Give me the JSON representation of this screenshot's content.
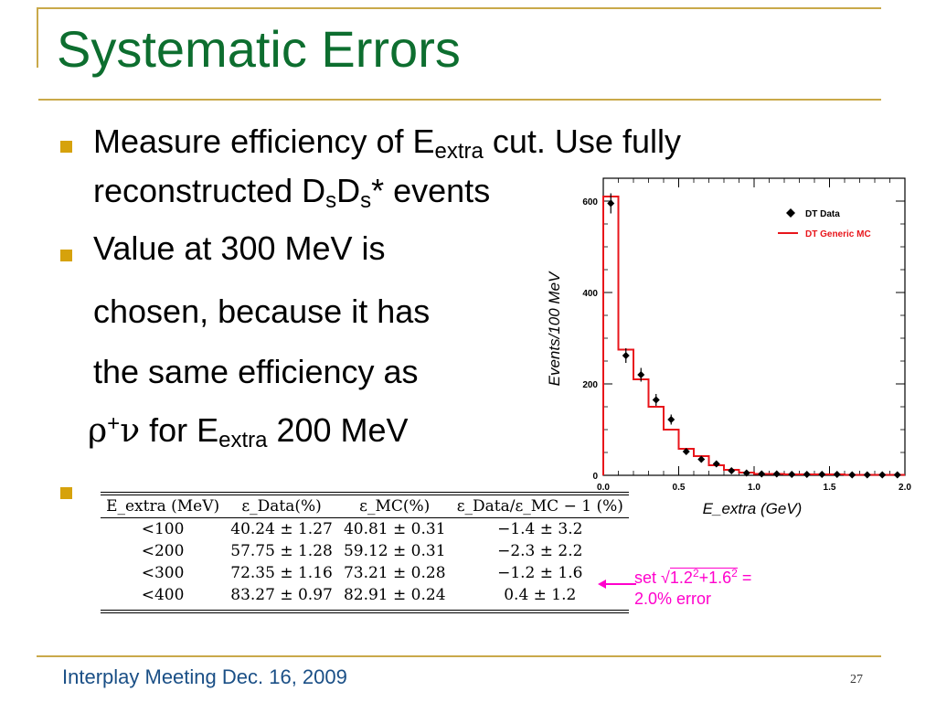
{
  "slide": {
    "title": "Systematic Errors",
    "footer": "Interplay Meeting Dec. 16, 2009",
    "page_number": "27"
  },
  "bullets": {
    "b1_line1_pre": "Measure efficiency of E",
    "b1_line1_sub": "extra",
    "b1_line1_post": " cut. Use fully",
    "b1_line2_pre": "reconstructed D",
    "b1_line2_sub1": "s",
    "b1_line2_mid": "D",
    "b1_line2_sub2": "s",
    "b1_line2_post": "* events",
    "b2_line1": "Value at 300 MeV is",
    "b2_line2": "chosen, because it has",
    "b2_line3": "the same efficiency  as",
    "b2_line4_rho": "ρ",
    "b2_line4_sup": "+",
    "b2_line4_nu": "ν",
    "b2_line4_pre": " for E",
    "b2_line4_sub": "extra",
    "b2_line4_post": " 200 MeV"
  },
  "table": {
    "headers": [
      "E_extra (MeV)",
      "ε_Data(%)",
      "ε_MC(%)",
      "ε_Data/ε_MC − 1 (%)"
    ],
    "rows": [
      [
        "<100",
        "40.24 ± 1.27",
        "40.81 ± 0.31",
        "−1.4 ± 3.2"
      ],
      [
        "<200",
        "57.75 ± 1.28",
        "59.12 ± 0.31",
        "−2.3 ± 2.2"
      ],
      [
        "<300",
        "72.35 ± 1.16",
        "73.21 ± 0.28",
        "−1.2 ± 1.6"
      ],
      [
        "<400",
        "83.27 ± 0.97",
        "82.91 ± 0.24",
        "0.4 ± 1.2"
      ]
    ]
  },
  "annotation": {
    "pre": "set √",
    "radicand_a": "1.2",
    "sup_a": "2",
    "plus": "+1.6",
    "sup_b": "2",
    "post": " =",
    "line2": "2.0% error",
    "color": "#ff00cc"
  },
  "chart_data": {
    "type": "scatter",
    "xlabel": "E_extra (GeV)",
    "ylabel": "Events/100 MeV",
    "xlim": [
      0.0,
      2.0
    ],
    "ylim": [
      0,
      650
    ],
    "x_ticks": [
      "0.0",
      "0.5",
      "1.0",
      "1.5",
      "2.0"
    ],
    "y_ticks": [
      "0",
      "200",
      "400",
      "600"
    ],
    "legend_placement": "top-right",
    "series": [
      {
        "name": "DT Data",
        "kind": "points",
        "color": "#000000",
        "x": [
          0.05,
          0.15,
          0.25,
          0.35,
          0.45,
          0.55,
          0.65,
          0.75,
          0.85,
          0.95,
          1.05,
          1.15,
          1.25,
          1.35,
          1.45,
          1.55,
          1.65,
          1.75,
          1.85,
          1.95
        ],
        "y": [
          595,
          262,
          220,
          165,
          122,
          52,
          35,
          25,
          10,
          5,
          3,
          3,
          2,
          2,
          2,
          2,
          1,
          1,
          1,
          1
        ],
        "err": [
          22,
          16,
          15,
          13,
          11,
          7,
          6,
          5,
          3,
          2,
          2,
          2,
          1,
          1,
          1,
          1,
          1,
          1,
          1,
          1
        ]
      },
      {
        "name": "DT Generic MC",
        "kind": "step",
        "color": "#e8151b",
        "bin_edges": [
          0.0,
          0.1,
          0.2,
          0.3,
          0.4,
          0.5,
          0.6,
          0.7,
          0.8,
          0.9,
          1.0,
          1.1,
          1.2,
          1.3,
          1.4,
          1.5,
          1.6,
          1.7,
          1.8,
          1.9,
          2.0
        ],
        "values": [
          610,
          275,
          210,
          150,
          100,
          58,
          42,
          22,
          12,
          6,
          3,
          3,
          2,
          2,
          2,
          2,
          1,
          1,
          1,
          1
        ]
      }
    ]
  }
}
